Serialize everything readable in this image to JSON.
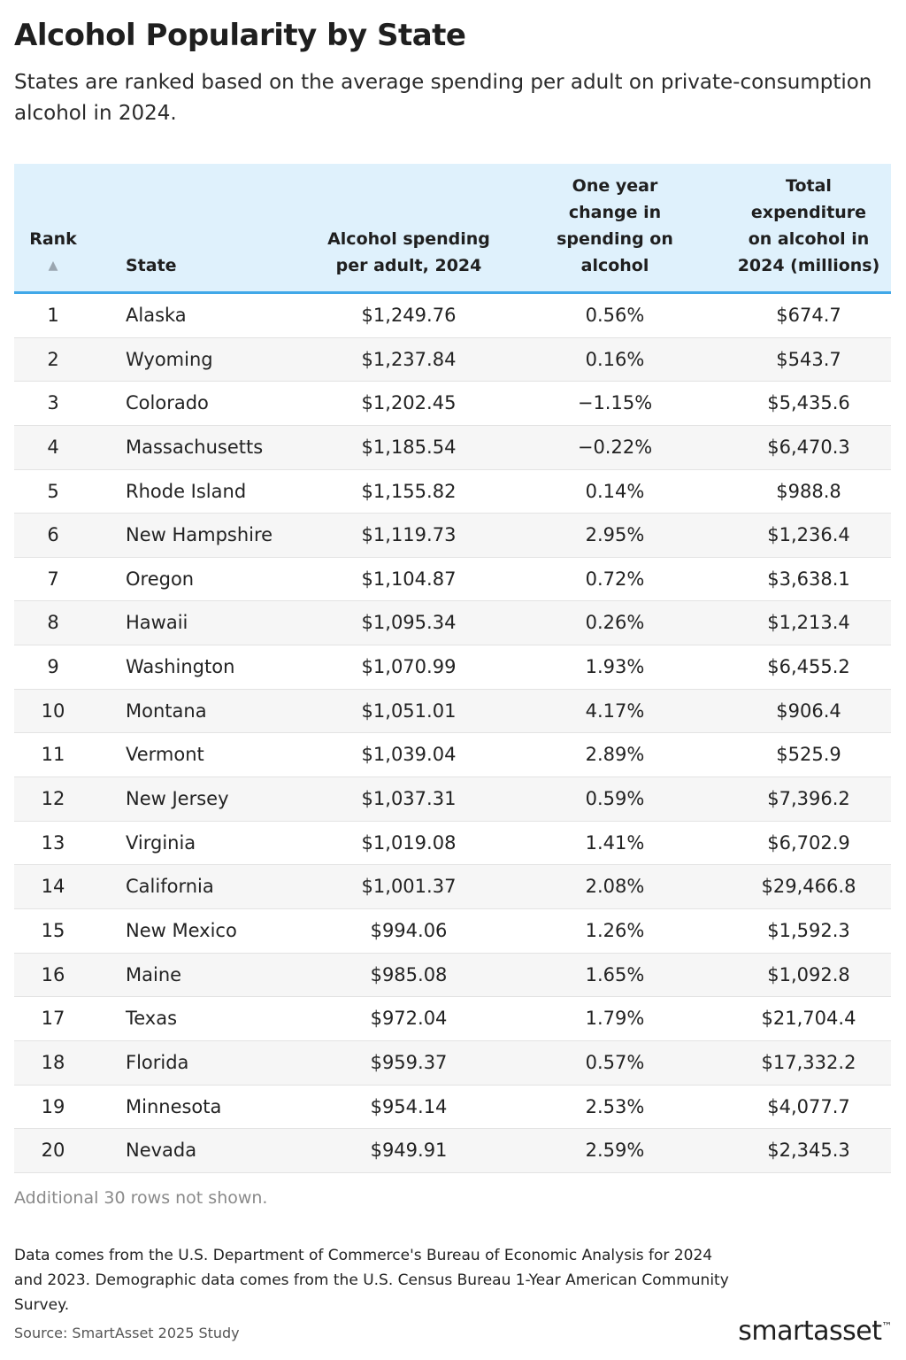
{
  "title": "Alcohol Popularity by State",
  "subtitle": "States are ranked based on the average spending per adult on private-consumption alcohol in 2024.",
  "columns": {
    "rank": "Rank",
    "state": "State",
    "spend": [
      "Alcohol spending",
      "per adult, 2024"
    ],
    "change": [
      "One year",
      "change in",
      "spending on",
      "alcohol"
    ],
    "total": [
      "Total",
      "expenditure",
      "on alcohol in",
      "2024 (millions)"
    ]
  },
  "sort_icon": "sort-ascending-icon",
  "colors": {
    "header_bg": "#dff1fc",
    "header_border": "#41a8e8",
    "zebra": "#f6f6f6"
  },
  "chart_data": {
    "type": "table",
    "title": "Alcohol Popularity by State",
    "columns": [
      "Rank",
      "State",
      "Alcohol spending per adult, 2024",
      "One year change in spending on alcohol",
      "Total expenditure on alcohol in 2024 (millions)"
    ],
    "rows": [
      [
        "1",
        "Alaska",
        "$1,249.76",
        "0.56%",
        "$674.7"
      ],
      [
        "2",
        "Wyoming",
        "$1,237.84",
        "0.16%",
        "$543.7"
      ],
      [
        "3",
        "Colorado",
        "$1,202.45",
        "−1.15%",
        "$5,435.6"
      ],
      [
        "4",
        "Massachusetts",
        "$1,185.54",
        "−0.22%",
        "$6,470.3"
      ],
      [
        "5",
        "Rhode Island",
        "$1,155.82",
        "0.14%",
        "$988.8"
      ],
      [
        "6",
        "New Hampshire",
        "$1,119.73",
        "2.95%",
        "$1,236.4"
      ],
      [
        "7",
        "Oregon",
        "$1,104.87",
        "0.72%",
        "$3,638.1"
      ],
      [
        "8",
        "Hawaii",
        "$1,095.34",
        "0.26%",
        "$1,213.4"
      ],
      [
        "9",
        "Washington",
        "$1,070.99",
        "1.93%",
        "$6,455.2"
      ],
      [
        "10",
        "Montana",
        "$1,051.01",
        "4.17%",
        "$906.4"
      ],
      [
        "11",
        "Vermont",
        "$1,039.04",
        "2.89%",
        "$525.9"
      ],
      [
        "12",
        "New Jersey",
        "$1,037.31",
        "0.59%",
        "$7,396.2"
      ],
      [
        "13",
        "Virginia",
        "$1,019.08",
        "1.41%",
        "$6,702.9"
      ],
      [
        "14",
        "California",
        "$1,001.37",
        "2.08%",
        "$29,466.8"
      ],
      [
        "15",
        "New Mexico",
        "$994.06",
        "1.26%",
        "$1,592.3"
      ],
      [
        "16",
        "Maine",
        "$985.08",
        "1.65%",
        "$1,092.8"
      ],
      [
        "17",
        "Texas",
        "$972.04",
        "1.79%",
        "$21,704.4"
      ],
      [
        "18",
        "Florida",
        "$959.37",
        "0.57%",
        "$17,332.2"
      ],
      [
        "19",
        "Minnesota",
        "$954.14",
        "2.53%",
        "$4,077.7"
      ],
      [
        "20",
        "Nevada",
        "$949.91",
        "2.59%",
        "$2,345.3"
      ]
    ]
  },
  "more_rows": "Additional 30 rows not shown.",
  "note": "Data comes from the U.S. Department of Commerce's Bureau of Economic Analysis for 2024 and 2023. Demographic data comes from the U.S. Census Bureau 1-Year American Community Survey.",
  "source": "Source: SmartAsset 2025 Study",
  "logo": {
    "part1": "smart",
    "part2": "asset",
    "tm": "™"
  }
}
